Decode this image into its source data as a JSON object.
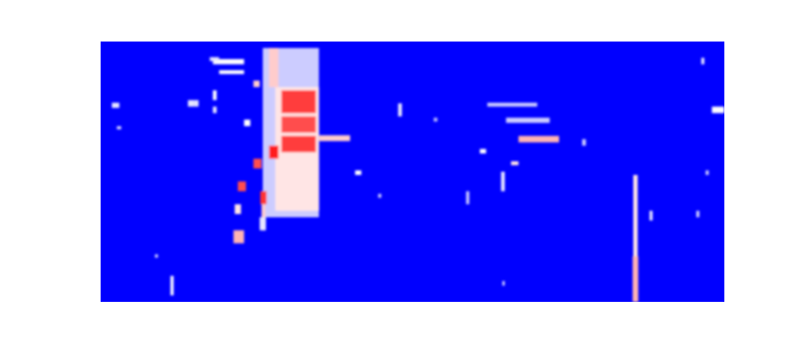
{
  "chart_data": {
    "type": "heatmap",
    "color": "bwr",
    "tick_labels": false,
    "xlim": [
      0,
      100
    ],
    "ylim": [
      0,
      40
    ],
    "vlim": [
      0,
      1
    ],
    "blocks": [
      [
        26,
        35,
        13,
        39,
        0.4
      ],
      [
        28,
        35,
        14,
        33,
        0.55
      ],
      [
        29,
        34.5,
        29,
        32.5,
        0.88
      ],
      [
        29,
        34.5,
        26,
        28.5,
        0.85
      ],
      [
        29,
        34.5,
        23,
        25.5,
        0.88
      ],
      [
        27,
        28.5,
        22,
        24,
        0.95
      ],
      [
        27,
        28.5,
        33,
        39,
        0.6
      ],
      [
        24.5,
        25.8,
        20.5,
        22,
        0.85
      ],
      [
        22,
        23.3,
        17,
        18.5,
        0.85
      ],
      [
        25.6,
        26.6,
        15,
        17,
        0.9
      ],
      [
        25.8,
        26.4,
        11,
        15,
        0.6
      ],
      [
        21.3,
        23,
        9,
        11,
        0.65
      ],
      [
        21.5,
        22.5,
        13.5,
        15,
        0.55
      ],
      [
        18,
        23,
        36.5,
        37.3,
        0.5
      ],
      [
        19,
        23,
        35,
        35.6,
        0.5
      ],
      [
        17.5,
        19,
        37,
        37.6,
        0.45
      ],
      [
        1.8,
        3,
        29.8,
        30.6,
        0.45
      ],
      [
        2.6,
        3.3,
        26.5,
        27,
        0.4
      ],
      [
        14,
        15,
        30,
        31,
        0.45
      ],
      [
        18,
        18.6,
        31,
        32.5,
        0.5
      ],
      [
        23,
        24,
        27,
        28,
        0.5
      ],
      [
        24.5,
        25.5,
        33,
        34,
        0.6
      ],
      [
        25.5,
        26.5,
        11,
        13,
        0.45
      ],
      [
        35,
        40,
        24.7,
        25.6,
        0.6
      ],
      [
        40.8,
        41.8,
        19.5,
        20.2,
        0.5
      ],
      [
        47.7,
        48.3,
        28.5,
        30.5,
        0.45
      ],
      [
        44.5,
        45,
        16,
        16.6,
        0.4
      ],
      [
        60.8,
        61.8,
        22.8,
        23.5,
        0.5
      ],
      [
        65.8,
        67,
        21,
        21.6,
        0.55
      ],
      [
        64.2,
        64.8,
        17,
        20,
        0.45
      ],
      [
        67,
        73.5,
        24.5,
        25.5,
        0.65
      ],
      [
        65,
        72,
        27.5,
        28.3,
        0.4
      ],
      [
        62,
        70,
        30,
        30.6,
        0.4
      ],
      [
        77.2,
        77.8,
        24,
        25,
        0.4
      ],
      [
        85.4,
        86.1,
        0,
        19.5,
        0.55
      ],
      [
        85.3,
        86.2,
        0,
        7,
        0.65
      ],
      [
        88,
        88.5,
        12.5,
        14,
        0.45
      ],
      [
        96.3,
        96.8,
        36.5,
        37.5,
        0.45
      ],
      [
        98,
        100,
        29,
        30,
        0.5
      ],
      [
        97,
        97.5,
        19.5,
        20.2,
        0.4
      ],
      [
        95.5,
        96,
        13,
        14,
        0.4
      ],
      [
        11.2,
        11.7,
        1,
        4,
        0.5
      ],
      [
        8.7,
        9.2,
        6.8,
        7.3,
        0.4
      ],
      [
        58.6,
        59.1,
        15,
        17,
        0.4
      ],
      [
        64.4,
        64.8,
        2.5,
        3.2,
        0.4
      ],
      [
        53.4,
        54,
        27.7,
        28.3,
        0.35
      ],
      [
        18,
        18.6,
        29,
        30,
        0.45
      ],
      [
        15,
        15.7,
        30,
        31,
        0.45
      ]
    ]
  }
}
